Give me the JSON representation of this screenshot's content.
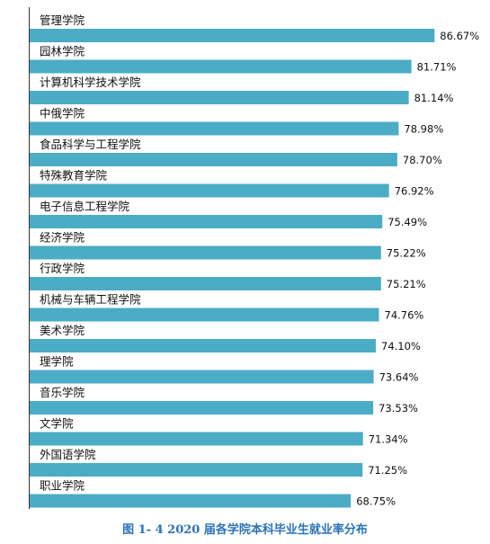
{
  "caption": "图 1- 4    2020 届各学院本科毕业生就业率分布",
  "chart_data": {
    "type": "bar",
    "orientation": "horizontal",
    "categories": [
      "管理学院",
      "园林学院",
      "计算机科学技术学院",
      "中俄学院",
      "食品科学与工程学院",
      "特殊教育学院",
      "电子信息工程学院",
      "经济学院",
      "行政学院",
      "机械与车辆工程学院",
      "美术学院",
      "理学院",
      "音乐学院",
      "文学院",
      "外国语学院",
      "职业学院"
    ],
    "values": [
      86.67,
      81.71,
      81.14,
      78.98,
      78.7,
      76.92,
      75.49,
      75.22,
      75.21,
      74.76,
      74.1,
      73.64,
      73.53,
      71.34,
      71.25,
      68.75
    ],
    "value_labels": [
      "86.67%",
      "81.71%",
      "81.14%",
      "78.98%",
      "78.70%",
      "76.92%",
      "75.49%",
      "75.22%",
      "75.21%",
      "74.76%",
      "74.10%",
      "73.64%",
      "73.53%",
      "71.34%",
      "71.25%",
      "68.75%"
    ],
    "bar_color": "#4bacc6",
    "grid": false,
    "legend": "none"
  }
}
